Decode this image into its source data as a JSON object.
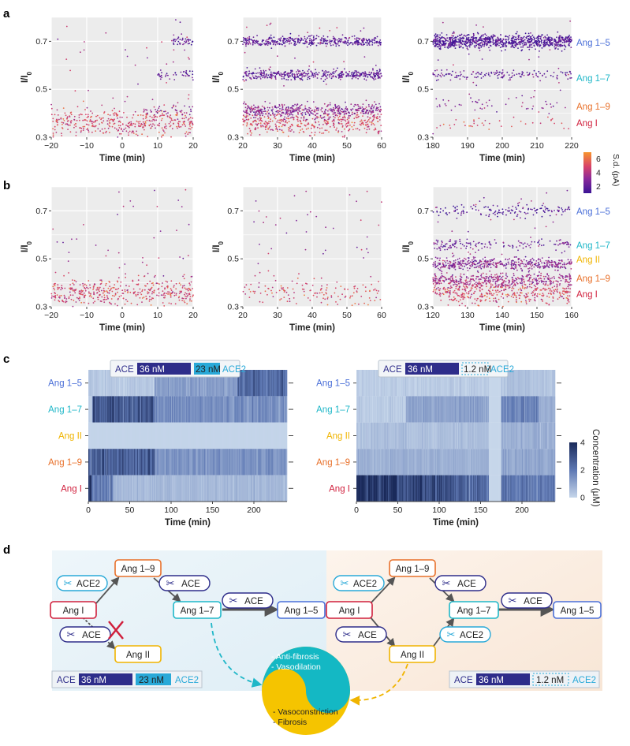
{
  "figure": {
    "panel_letters": [
      "a",
      "b",
      "c",
      "d"
    ]
  },
  "colors": {
    "ang15": "#4a6fd8",
    "ang17": "#1fb7c8",
    "angII": "#f0b400",
    "ang19": "#e8702a",
    "angI": "#d01f3c",
    "ace_dark": "#2e2d8a",
    "ace2_cyan": "#29a9d8",
    "heat_low": "#c6d6ea",
    "heat_high": "#1a2a5a",
    "left_bg": "#e9f3f8",
    "right_bg": "#fbefe4"
  },
  "chart_data": [
    {
      "id": "a1",
      "type": "scatter",
      "row": "a",
      "xlabel": "Time (min)",
      "ylabel": "I/I0",
      "xlim": [
        -20,
        20
      ],
      "ylim": [
        0.3,
        0.8
      ],
      "xticks": [
        -20,
        -10,
        0,
        10,
        20
      ],
      "yticks": [
        0.3,
        0.5,
        0.7
      ],
      "grid": true,
      "bands": [
        {
          "center": 0.36,
          "spread": 0.028,
          "density": "high",
          "color_value": 5.0,
          "x_range": [
            -20,
            20
          ]
        },
        {
          "center": 0.41,
          "spread": 0.015,
          "density": "low",
          "color_value": 3.0,
          "x_range": [
            6,
            20
          ]
        },
        {
          "center": 0.56,
          "spread": 0.01,
          "density": "low",
          "color_value": 2.0,
          "x_range": [
            10,
            20
          ]
        },
        {
          "center": 0.7,
          "spread": 0.01,
          "density": "low",
          "color_value": 1.8,
          "x_range": [
            14,
            20
          ]
        }
      ]
    },
    {
      "id": "a2",
      "type": "scatter",
      "row": "a",
      "xlabel": "Time (min)",
      "ylabel": "I/I0",
      "xlim": [
        20,
        60
      ],
      "ylim": [
        0.3,
        0.8
      ],
      "xticks": [
        20,
        30,
        40,
        50,
        60
      ],
      "yticks": [
        0.3,
        0.5,
        0.7
      ],
      "grid": true,
      "bands": [
        {
          "center": 0.36,
          "spread": 0.025,
          "density": "high",
          "color_value": 5.0,
          "x_range": [
            20,
            60
          ]
        },
        {
          "center": 0.41,
          "spread": 0.015,
          "density": "high",
          "color_value": 3.0,
          "x_range": [
            20,
            60
          ]
        },
        {
          "center": 0.56,
          "spread": 0.01,
          "density": "high",
          "color_value": 2.0,
          "x_range": [
            20,
            60
          ]
        },
        {
          "center": 0.7,
          "spread": 0.01,
          "density": "high",
          "color_value": 1.8,
          "x_range": [
            20,
            60
          ]
        }
      ]
    },
    {
      "id": "a3",
      "type": "scatter",
      "row": "a",
      "xlabel": "Time (min)",
      "ylabel": "I/I0",
      "xlim": [
        180,
        220
      ],
      "ylim": [
        0.3,
        0.8
      ],
      "xticks": [
        180,
        190,
        200,
        210,
        220
      ],
      "yticks": [
        0.3,
        0.5,
        0.7
      ],
      "grid": true,
      "bands": [
        {
          "center": 0.36,
          "spread": 0.02,
          "density": "low",
          "color_value": 5.0,
          "x_range": [
            180,
            220
          ]
        },
        {
          "center": 0.43,
          "spread": 0.015,
          "density": "low",
          "color_value": 3.0,
          "x_range": [
            180,
            220
          ]
        },
        {
          "center": 0.56,
          "spread": 0.01,
          "density": "mid",
          "color_value": 2.0,
          "x_range": [
            180,
            220
          ]
        },
        {
          "center": 0.7,
          "spread": 0.014,
          "density": "very-high",
          "color_value": 1.5,
          "x_range": [
            180,
            220
          ]
        }
      ]
    },
    {
      "id": "b1",
      "type": "scatter",
      "row": "b",
      "xlabel": "Time (min)",
      "ylabel": "I/I0",
      "xlim": [
        -20,
        20
      ],
      "ylim": [
        0.3,
        0.8
      ],
      "xticks": [
        -20,
        -10,
        0,
        10,
        20
      ],
      "yticks": [
        0.3,
        0.5,
        0.7
      ],
      "grid": true,
      "bands": [
        {
          "center": 0.36,
          "spread": 0.028,
          "density": "high",
          "color_value": 5.0,
          "x_range": [
            -20,
            20
          ]
        }
      ]
    },
    {
      "id": "b2",
      "type": "scatter",
      "row": "b",
      "xlabel": "Time (min)",
      "ylabel": "I/I0",
      "xlim": [
        20,
        60
      ],
      "ylim": [
        0.3,
        0.8
      ],
      "xticks": [
        20,
        30,
        40,
        50,
        60
      ],
      "yticks": [
        0.3,
        0.5,
        0.7
      ],
      "grid": true,
      "bands": [
        {
          "center": 0.36,
          "spread": 0.025,
          "density": "mid",
          "color_value": 5.0,
          "x_range": [
            20,
            60
          ]
        }
      ]
    },
    {
      "id": "b3",
      "type": "scatter",
      "row": "b",
      "xlabel": "Time (min)",
      "ylabel": "I/I0",
      "xlim": [
        120,
        160
      ],
      "ylim": [
        0.3,
        0.8
      ],
      "xticks": [
        120,
        130,
        140,
        150,
        160
      ],
      "yticks": [
        0.3,
        0.5,
        0.7
      ],
      "grid": true,
      "bands": [
        {
          "center": 0.36,
          "spread": 0.025,
          "density": "high",
          "color_value": 5.0,
          "x_range": [
            120,
            160
          ]
        },
        {
          "center": 0.41,
          "spread": 0.015,
          "density": "high",
          "color_value": 3.5,
          "x_range": [
            120,
            160
          ]
        },
        {
          "center": 0.48,
          "spread": 0.012,
          "density": "high",
          "color_value": 3.0,
          "x_range": [
            120,
            160
          ]
        },
        {
          "center": 0.56,
          "spread": 0.012,
          "density": "mid",
          "color_value": 2.2,
          "x_range": [
            120,
            160
          ]
        },
        {
          "center": 0.7,
          "spread": 0.012,
          "density": "mid",
          "color_value": 1.6,
          "x_range": [
            120,
            160
          ]
        }
      ]
    },
    {
      "id": "c1",
      "type": "heatmap",
      "row": "c",
      "xlabel": "Time (min)",
      "xlim": [
        0,
        240
      ],
      "xticks": [
        0,
        50,
        100,
        150,
        200
      ],
      "rows": [
        "Ang 1–5",
        "Ang 1–7",
        "Ang II",
        "Ang 1–9",
        "Ang I"
      ],
      "colorbar": {
        "label": "Concentration (μM)",
        "range": [
          0,
          4
        ],
        "ticks": [
          0,
          2,
          4
        ]
      },
      "rows_profile": [
        {
          "name": "Ang 1–5",
          "segments": [
            [
              0,
              80,
              0.3
            ],
            [
              80,
              180,
              1.2
            ],
            [
              180,
              240,
              2.4
            ]
          ]
        },
        {
          "name": "Ang 1–7",
          "segments": [
            [
              0,
              5,
              0.2
            ],
            [
              5,
              80,
              2.8
            ],
            [
              80,
              240,
              1.5
            ]
          ]
        },
        {
          "name": "Ang II",
          "segments": [
            [
              0,
              240,
              0.05
            ]
          ]
        },
        {
          "name": "Ang 1–9",
          "segments": [
            [
              0,
              80,
              2.6
            ],
            [
              80,
              240,
              1.4
            ]
          ]
        },
        {
          "name": "Ang I",
          "segments": [
            [
              0,
              4,
              3.8
            ],
            [
              4,
              30,
              1.8
            ],
            [
              30,
              240,
              0.6
            ]
          ]
        }
      ],
      "legend": {
        "ace": "ACE",
        "ace_conc": "36 nM",
        "ace2_conc": "23 nM",
        "ace2": "ACE2"
      }
    },
    {
      "id": "c2",
      "type": "heatmap",
      "row": "c",
      "xlabel": "Time (min)",
      "xlim": [
        0,
        240
      ],
      "xticks": [
        0,
        50,
        100,
        150,
        200
      ],
      "rows": [
        "Ang 1–5",
        "Ang 1–7",
        "Ang II",
        "Ang 1–9",
        "Ang I"
      ],
      "rows_profile": [
        {
          "name": "Ang 1–5",
          "segments": [
            [
              0,
              160,
              0.2
            ],
            [
              160,
              175,
              0.0
            ],
            [
              175,
              240,
              0.4
            ]
          ]
        },
        {
          "name": "Ang 1–7",
          "segments": [
            [
              0,
              60,
              0.2
            ],
            [
              60,
              160,
              1.1
            ],
            [
              160,
              175,
              0.0
            ],
            [
              175,
              220,
              1.8
            ],
            [
              220,
              240,
              0.8
            ]
          ]
        },
        {
          "name": "Ang II",
          "segments": [
            [
              0,
              160,
              0.5
            ],
            [
              160,
              175,
              0.0
            ],
            [
              175,
              240,
              0.8
            ]
          ]
        },
        {
          "name": "Ang 1–9",
          "segments": [
            [
              0,
              160,
              0.8
            ],
            [
              160,
              175,
              0.0
            ],
            [
              175,
              240,
              1.0
            ]
          ]
        },
        {
          "name": "Ang I",
          "segments": [
            [
              0,
              50,
              4.0
            ],
            [
              50,
              120,
              3.0
            ],
            [
              120,
              160,
              2.4
            ],
            [
              160,
              175,
              0.0
            ],
            [
              175,
              240,
              2.0
            ]
          ]
        }
      ],
      "legend": {
        "ace": "ACE",
        "ace_conc": "36 nM",
        "ace2_conc": "1.2 nM",
        "ace2": "ACE2"
      }
    }
  ],
  "scatter_colorbar": {
    "label": "S.d. (pA)",
    "range": [
      1,
      7
    ],
    "ticks": [
      2,
      4,
      6
    ]
  },
  "series_labels": {
    "a": [
      "Ang 1–5",
      "Ang 1–7",
      "Ang 1–9",
      "Ang I"
    ],
    "b": [
      "Ang 1–5",
      "Ang 1–7",
      "Ang II",
      "Ang 1–9",
      "Ang I"
    ]
  },
  "diagram": {
    "left": {
      "nodes": {
        "angI": "Ang I",
        "ang19": "Ang 1–9",
        "ang17": "Ang 1–7",
        "ang15": "Ang 1–5",
        "angII": "Ang II"
      },
      "enzymes": {
        "ace2_a": "ACE2",
        "ace_b": "ACE",
        "ace_c": "ACE",
        "ace_d": "ACE"
      },
      "legend": {
        "ace": "ACE",
        "ace_conc": "36 nM",
        "ace2_conc": "23 nM",
        "ace2": "ACE2"
      }
    },
    "right": {
      "nodes": {
        "angI": "Ang I",
        "ang19": "Ang 1–9",
        "ang17": "Ang 1–7",
        "ang15": "Ang 1–5",
        "angII": "Ang II"
      },
      "enzymes": {
        "ace2_a": "ACE2",
        "ace_b": "ACE",
        "ace_c": "ACE",
        "ace_d": "ACE",
        "ace2_e": "ACE2"
      },
      "legend": {
        "ace": "ACE",
        "ace_conc": "36 nM",
        "ace2_conc": "1.2 nM",
        "ace2": "ACE2"
      }
    },
    "yin_yang": {
      "top": [
        "- Anti-fibrosis",
        "- Vasodilation"
      ],
      "bottom": [
        "- Vasoconstriction",
        "- Fibrosis"
      ]
    }
  }
}
